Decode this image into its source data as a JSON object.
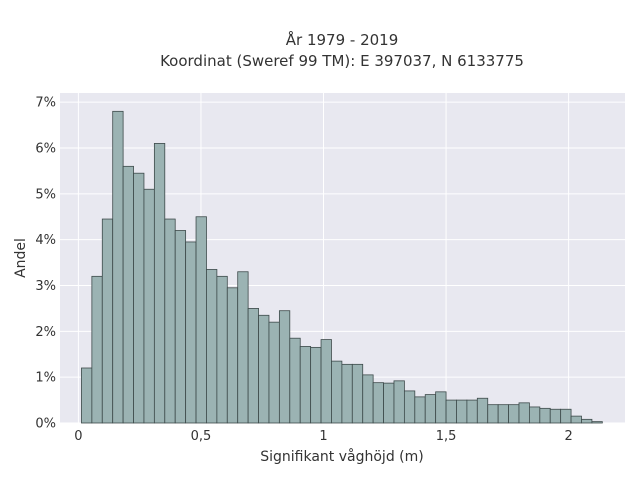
{
  "chart_data": {
    "type": "bar",
    "title_lines": [
      "År 1979 - 2019",
      "Koordinat (Sweref 99 TM): E 397037, N 6133775"
    ],
    "xlabel": "Signifikant våghöjd (m)",
    "ylabel": "Andel",
    "xlim": [
      -0.075,
      2.23
    ],
    "ylim": [
      0,
      7.2
    ],
    "x_ticks": [
      {
        "value": 0,
        "label": "0"
      },
      {
        "value": 0.5,
        "label": "0,5"
      },
      {
        "value": 1,
        "label": "1"
      },
      {
        "value": 1.5,
        "label": "1,5"
      },
      {
        "value": 2,
        "label": "2"
      }
    ],
    "y_ticks": [
      {
        "value": 0,
        "label": "0%"
      },
      {
        "value": 1,
        "label": "1%"
      },
      {
        "value": 2,
        "label": "2%"
      },
      {
        "value": 3,
        "label": "3%"
      },
      {
        "value": 4,
        "label": "4%"
      },
      {
        "value": 5,
        "label": "5%"
      },
      {
        "value": 6,
        "label": "6%"
      },
      {
        "value": 7,
        "label": "7%"
      }
    ],
    "bin_start": 0.0125,
    "bin_width": 0.0425,
    "values": [
      1.2,
      3.2,
      4.45,
      6.8,
      5.6,
      5.45,
      5.1,
      6.1,
      4.45,
      4.2,
      3.95,
      4.5,
      3.35,
      3.2,
      2.95,
      3.3,
      2.5,
      2.35,
      2.2,
      2.45,
      1.85,
      1.67,
      1.65,
      1.82,
      1.35,
      1.28,
      1.28,
      1.05,
      0.88,
      0.87,
      0.92,
      0.7,
      0.57,
      0.62,
      0.68,
      0.5,
      0.5,
      0.5,
      0.54,
      0.4,
      0.4,
      0.4,
      0.44,
      0.35,
      0.32,
      0.3,
      0.3,
      0.15,
      0.08,
      0.03
    ],
    "colors": {
      "plot_background": "#e8e8f0",
      "grid": "#ffffff",
      "bar_fill": "#9bb3b3",
      "bar_stroke": "#3d4a4a"
    },
    "grid": true
  }
}
